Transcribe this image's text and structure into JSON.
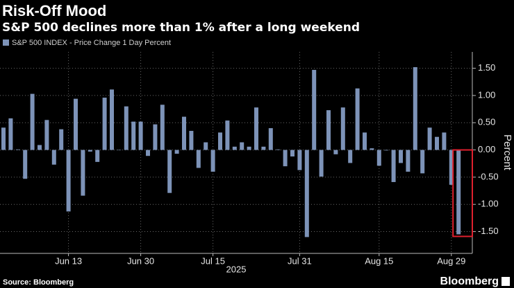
{
  "chart_data": {
    "type": "bar",
    "title": "Risk-Off Mood",
    "subtitle": "S&P 500 declines more than 1% after a long weekend",
    "series_name": "S&P 500 INDEX - Price Change 1 Day Percent",
    "color": "#7d93b8",
    "highlight_color": "#e0202e",
    "y_axis_label": "Percent",
    "x_axis_label": "2025",
    "source": "Source: Bloomberg",
    "brand": "Bloomberg",
    "categories": [
      null,
      null,
      null,
      null,
      null,
      null,
      null,
      null,
      null,
      "Jun 13",
      null,
      null,
      null,
      null,
      null,
      null,
      null,
      null,
      null,
      "Jun 30",
      null,
      null,
      null,
      null,
      null,
      null,
      null,
      null,
      null,
      "Jul 15",
      null,
      null,
      null,
      null,
      null,
      null,
      null,
      null,
      null,
      null,
      null,
      "Jul 31",
      null,
      null,
      null,
      null,
      null,
      null,
      null,
      null,
      null,
      null,
      "Aug 15",
      null,
      null,
      null,
      null,
      null,
      null,
      null,
      null,
      null,
      "Aug 29",
      null
    ],
    "values": [
      0.41,
      0.58,
      0.01,
      -0.53,
      1.03,
      0.09,
      0.55,
      -0.27,
      0.38,
      -1.13,
      0.94,
      -0.84,
      -0.03,
      -0.22,
      0.96,
      1.11,
      0.0,
      0.8,
      0.52,
      0.52,
      -0.11,
      0.47,
      0.83,
      -0.79,
      -0.07,
      0.61,
      0.35,
      -0.33,
      0.14,
      -0.4,
      0.32,
      0.54,
      0.06,
      0.14,
      0.06,
      0.78,
      0.06,
      0.4,
      0.01,
      -0.3,
      -0.12,
      -0.37,
      -1.6,
      1.47,
      -0.49,
      0.73,
      -0.08,
      0.78,
      -0.24,
      1.13,
      0.32,
      0.03,
      -0.29,
      -0.01,
      -0.59,
      -0.24,
      -0.4,
      1.52,
      -0.43,
      0.41,
      0.24,
      0.32,
      -0.64,
      -1.55
    ],
    "ylim": [
      -1.9,
      1.8
    ],
    "yticks": [
      {
        "value": 1.5,
        "label": "1.50"
      },
      {
        "value": 1.0,
        "label": "1.00"
      },
      {
        "value": 0.5,
        "label": "0.50"
      },
      {
        "value": 0.0,
        "label": "0.00"
      },
      {
        "value": -0.5,
        "label": "-0.50"
      },
      {
        "value": -1.0,
        "label": "-1.00"
      },
      {
        "value": -1.5,
        "label": "-1.50"
      }
    ],
    "grid": true
  }
}
